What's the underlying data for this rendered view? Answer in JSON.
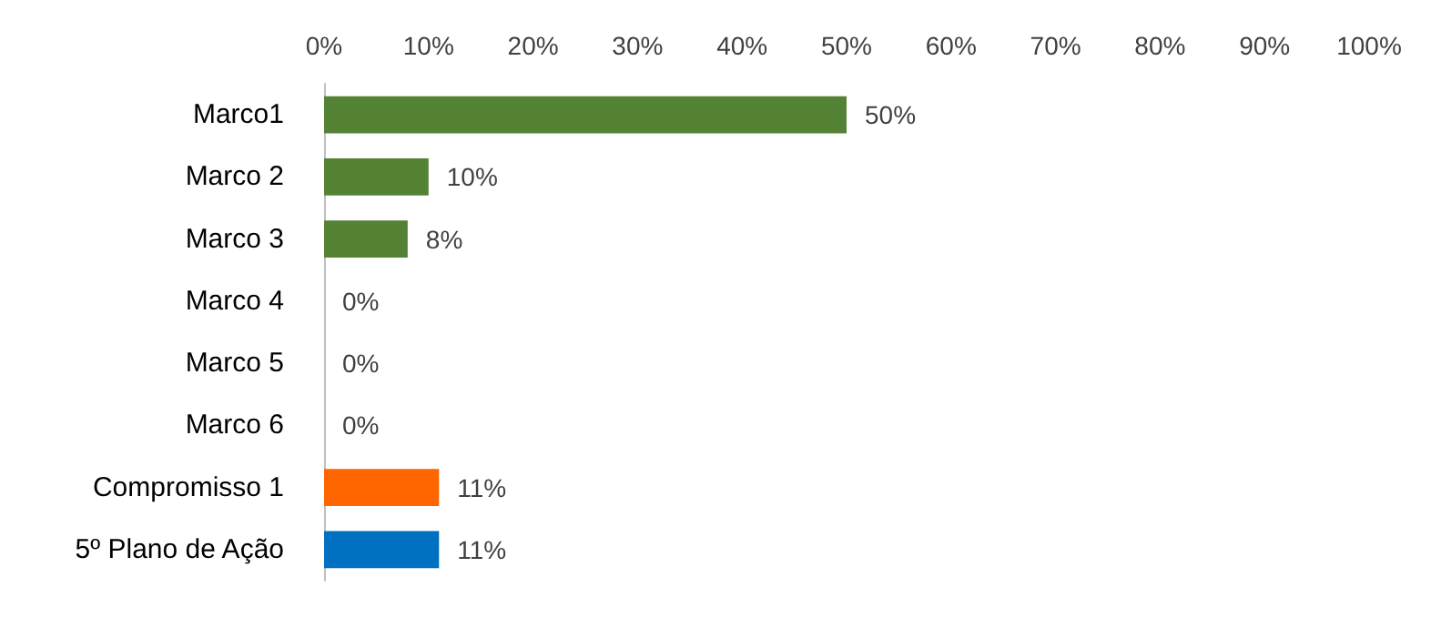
{
  "chart_data": {
    "type": "bar",
    "orientation": "horizontal",
    "categories": [
      "Marco1",
      "Marco 2",
      "Marco 3",
      "Marco 4",
      "Marco 5",
      "Marco 6",
      "Compromisso 1",
      "5º Plano de Ação"
    ],
    "values": [
      50,
      10,
      8,
      0,
      0,
      0,
      11,
      11
    ],
    "colors": [
      "#548235",
      "#548235",
      "#548235",
      "#548235",
      "#548235",
      "#548235",
      "#ff6600",
      "#0070c0"
    ],
    "value_labels": [
      "50%",
      "10%",
      "8%",
      "0%",
      "0%",
      "0%",
      "11%",
      "11%"
    ],
    "xlim": [
      0,
      100
    ],
    "xticks": [
      {
        "value": 0,
        "label": "0%"
      },
      {
        "value": 10,
        "label": "10%"
      },
      {
        "value": 20,
        "label": "20%"
      },
      {
        "value": 30,
        "label": "30%"
      },
      {
        "value": 40,
        "label": "40%"
      },
      {
        "value": 50,
        "label": "50%"
      },
      {
        "value": 60,
        "label": "60%"
      },
      {
        "value": 70,
        "label": "70%"
      },
      {
        "value": 80,
        "label": "80%"
      },
      {
        "value": 90,
        "label": "90%"
      },
      {
        "value": 100,
        "label": "100%"
      }
    ],
    "grid": false
  }
}
